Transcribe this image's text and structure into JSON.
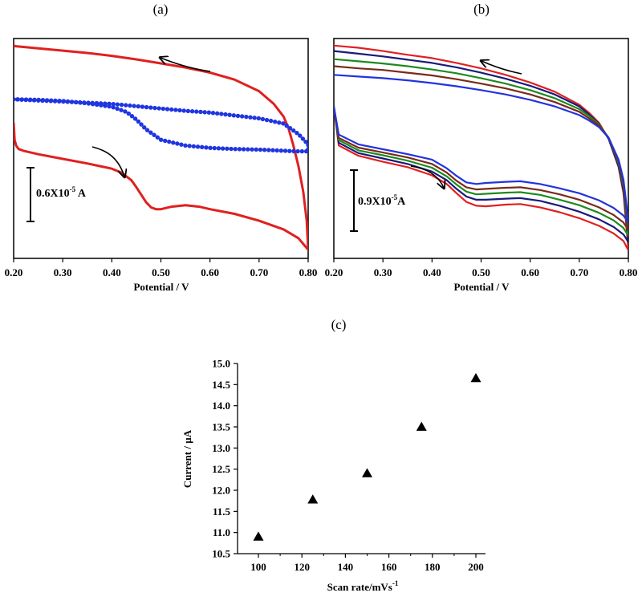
{
  "chart_data": [
    {
      "type": "line",
      "panel_label": "(a)",
      "xlabel": "Potential / V",
      "ylabel": "",
      "xlim": [
        0.2,
        0.8
      ],
      "x_ticks": [
        "0.20",
        "0.30",
        "0.40",
        "0.50",
        "0.60",
        "0.70",
        "0.80"
      ],
      "scale_bar": {
        "label_main": "0.6X10",
        "label_exp": "-5",
        "label_unit": " A",
        "value": 0.6
      },
      "y_units": "x10^-5 A",
      "series": [
        {
          "color": "#e02020",
          "style": "solid",
          "x": [
            0.2,
            0.202,
            0.205,
            0.21,
            0.22,
            0.25,
            0.3,
            0.35,
            0.4,
            0.42,
            0.44,
            0.45,
            0.46,
            0.47,
            0.48,
            0.49,
            0.5,
            0.52,
            0.55,
            0.58,
            0.6,
            0.65,
            0.7,
            0.75,
            0.78,
            0.79,
            0.8,
            0.8,
            0.797,
            0.79,
            0.78,
            0.77,
            0.76,
            0.75,
            0.73,
            0.7,
            0.65,
            0.6,
            0.55,
            0.5,
            0.45,
            0.4,
            0.35,
            0.3,
            0.25,
            0.2,
            0.2
          ],
          "y": [
            2.0,
            1.7,
            1.6,
            1.54,
            1.51,
            1.45,
            1.37,
            1.29,
            1.2,
            1.13,
            1.0,
            0.88,
            0.75,
            0.62,
            0.53,
            0.5,
            0.5,
            0.54,
            0.57,
            0.54,
            0.5,
            0.42,
            0.3,
            0.15,
            0.0,
            -0.1,
            -0.2,
            -0.2,
            0.3,
            0.8,
            1.25,
            1.6,
            1.9,
            2.1,
            2.32,
            2.54,
            2.74,
            2.86,
            2.95,
            3.02,
            3.09,
            3.15,
            3.2,
            3.24,
            3.28,
            3.32,
            3.35
          ]
        },
        {
          "color": "#1f35e0",
          "style": "dotted",
          "x": [
            0.2,
            0.25,
            0.3,
            0.35,
            0.4,
            0.43,
            0.45,
            0.47,
            0.5,
            0.55,
            0.6,
            0.65,
            0.7,
            0.75,
            0.78,
            0.8,
            0.8,
            0.78,
            0.75,
            0.7,
            0.65,
            0.6,
            0.55,
            0.5,
            0.45,
            0.4,
            0.35,
            0.3,
            0.25,
            0.2
          ],
          "y": [
            2.4,
            2.39,
            2.37,
            2.33,
            2.27,
            2.18,
            2.05,
            1.88,
            1.7,
            1.6,
            1.56,
            1.54,
            1.53,
            1.51,
            1.5,
            1.5,
            1.62,
            1.8,
            1.98,
            2.07,
            2.12,
            2.17,
            2.2,
            2.24,
            2.28,
            2.32,
            2.34,
            2.36,
            2.38,
            2.4
          ]
        }
      ]
    },
    {
      "type": "line",
      "panel_label": "(b)",
      "xlabel": "Potential / V",
      "ylabel": "",
      "xlim": [
        0.2,
        0.8
      ],
      "x_ticks": [
        "0.20",
        "0.30",
        "0.40",
        "0.50",
        "0.60",
        "0.70",
        "0.80"
      ],
      "scale_bar": {
        "label_main": "0.9X10",
        "label_exp": "-5",
        "label_unit": "A",
        "value": 0.9
      },
      "y_units": "x10^-5 A",
      "series": [
        {
          "color": "#e02020",
          "x": [
            0.2,
            0.21,
            0.25,
            0.3,
            0.35,
            0.4,
            0.43,
            0.45,
            0.47,
            0.49,
            0.51,
            0.55,
            0.58,
            0.62,
            0.66,
            0.7,
            0.74,
            0.77,
            0.79,
            0.8,
            0.8,
            0.795,
            0.79,
            0.78,
            0.76,
            0.74,
            0.72,
            0.7,
            0.65,
            0.6,
            0.55,
            0.5,
            0.45,
            0.4,
            0.35,
            0.3,
            0.25,
            0.2,
            0.2
          ],
          "y": [
            2.5,
            1.78,
            1.59,
            1.48,
            1.38,
            1.23,
            1.07,
            0.9,
            0.74,
            0.67,
            0.66,
            0.69,
            0.7,
            0.64,
            0.55,
            0.44,
            0.3,
            0.16,
            0.02,
            -0.15,
            -0.15,
            0.4,
            0.9,
            1.38,
            1.9,
            2.2,
            2.38,
            2.53,
            2.77,
            2.94,
            3.08,
            3.2,
            3.3,
            3.39,
            3.45,
            3.52,
            3.58,
            3.62,
            3.64
          ]
        },
        {
          "color": "#1a1a7a",
          "x": [
            0.2,
            0.21,
            0.25,
            0.3,
            0.35,
            0.4,
            0.43,
            0.45,
            0.47,
            0.49,
            0.51,
            0.55,
            0.58,
            0.62,
            0.66,
            0.7,
            0.74,
            0.77,
            0.79,
            0.8,
            0.8,
            0.795,
            0.79,
            0.78,
            0.76,
            0.74,
            0.72,
            0.7,
            0.65,
            0.6,
            0.55,
            0.5,
            0.45,
            0.4,
            0.35,
            0.3,
            0.25,
            0.2,
            0.2
          ],
          "y": [
            2.5,
            1.83,
            1.64,
            1.54,
            1.44,
            1.3,
            1.14,
            0.98,
            0.84,
            0.78,
            0.78,
            0.8,
            0.81,
            0.76,
            0.67,
            0.56,
            0.42,
            0.28,
            0.14,
            0.0,
            0.0,
            0.5,
            0.95,
            1.4,
            1.9,
            2.18,
            2.35,
            2.5,
            2.72,
            2.88,
            3.01,
            3.12,
            3.22,
            3.3,
            3.36,
            3.42,
            3.47,
            3.52,
            3.55
          ]
        },
        {
          "color": "#1e8a1e",
          "x": [
            0.2,
            0.21,
            0.25,
            0.3,
            0.35,
            0.4,
            0.43,
            0.45,
            0.47,
            0.49,
            0.51,
            0.55,
            0.58,
            0.62,
            0.66,
            0.7,
            0.74,
            0.77,
            0.79,
            0.8,
            0.8,
            0.795,
            0.79,
            0.78,
            0.76,
            0.74,
            0.72,
            0.7,
            0.65,
            0.6,
            0.55,
            0.5,
            0.45,
            0.4,
            0.35,
            0.3,
            0.25,
            0.2,
            0.2
          ],
          "y": [
            2.5,
            1.88,
            1.69,
            1.6,
            1.5,
            1.37,
            1.21,
            1.06,
            0.93,
            0.88,
            0.89,
            0.91,
            0.92,
            0.87,
            0.78,
            0.68,
            0.54,
            0.4,
            0.26,
            0.12,
            0.12,
            0.6,
            1.02,
            1.45,
            1.92,
            2.17,
            2.32,
            2.45,
            2.65,
            2.8,
            2.92,
            3.02,
            3.11,
            3.18,
            3.24,
            3.29,
            3.33,
            3.37,
            3.39
          ]
        },
        {
          "color": "#7a2a1a",
          "x": [
            0.2,
            0.21,
            0.25,
            0.3,
            0.35,
            0.4,
            0.43,
            0.45,
            0.47,
            0.49,
            0.51,
            0.55,
            0.58,
            0.62,
            0.66,
            0.7,
            0.74,
            0.77,
            0.79,
            0.8,
            0.8,
            0.795,
            0.79,
            0.78,
            0.76,
            0.74,
            0.72,
            0.7,
            0.65,
            0.6,
            0.55,
            0.5,
            0.45,
            0.4,
            0.35,
            0.3,
            0.25,
            0.2,
            0.2
          ],
          "y": [
            2.5,
            1.92,
            1.74,
            1.65,
            1.56,
            1.44,
            1.28,
            1.13,
            1.01,
            0.97,
            0.98,
            1.0,
            1.01,
            0.96,
            0.88,
            0.78,
            0.64,
            0.5,
            0.36,
            0.22,
            0.22,
            0.68,
            1.08,
            1.48,
            1.92,
            2.15,
            2.28,
            2.4,
            2.58,
            2.72,
            2.83,
            2.92,
            3.0,
            3.07,
            3.12,
            3.17,
            3.2,
            3.24,
            3.26
          ]
        },
        {
          "color": "#2233dd",
          "x": [
            0.2,
            0.21,
            0.25,
            0.3,
            0.35,
            0.4,
            0.43,
            0.45,
            0.47,
            0.49,
            0.51,
            0.55,
            0.58,
            0.62,
            0.66,
            0.7,
            0.74,
            0.77,
            0.79,
            0.8,
            0.8,
            0.795,
            0.79,
            0.78,
            0.76,
            0.74,
            0.72,
            0.7,
            0.65,
            0.6,
            0.55,
            0.5,
            0.45,
            0.4,
            0.35,
            0.3,
            0.25,
            0.2,
            0.2
          ],
          "y": [
            2.5,
            1.98,
            1.8,
            1.71,
            1.62,
            1.52,
            1.36,
            1.22,
            1.1,
            1.07,
            1.09,
            1.11,
            1.12,
            1.07,
            0.99,
            0.9,
            0.77,
            0.63,
            0.49,
            0.36,
            0.36,
            0.78,
            1.15,
            1.52,
            1.92,
            2.12,
            2.24,
            2.34,
            2.5,
            2.62,
            2.72,
            2.8,
            2.87,
            2.93,
            2.98,
            3.02,
            3.05,
            3.08,
            3.1
          ]
        }
      ]
    },
    {
      "type": "scatter",
      "panel_label": "(c)",
      "xlabel_main": "Scan rate/mVs",
      "xlabel_exp": "-1",
      "ylabel": "Current / µA",
      "xlim": [
        90,
        210
      ],
      "ylim": [
        10.5,
        15.0
      ],
      "x_ticks": [
        100,
        120,
        140,
        160,
        180,
        200
      ],
      "y_ticks": [
        "10.5",
        "11.0",
        "11.5",
        "12.0",
        "12.5",
        "13.0",
        "13.5",
        "14.0",
        "14.5",
        "15.0"
      ],
      "marker": "triangle",
      "color": "#000000",
      "x": [
        100,
        125,
        150,
        175,
        200
      ],
      "y": [
        10.9,
        11.78,
        12.4,
        13.5,
        14.65
      ]
    }
  ]
}
